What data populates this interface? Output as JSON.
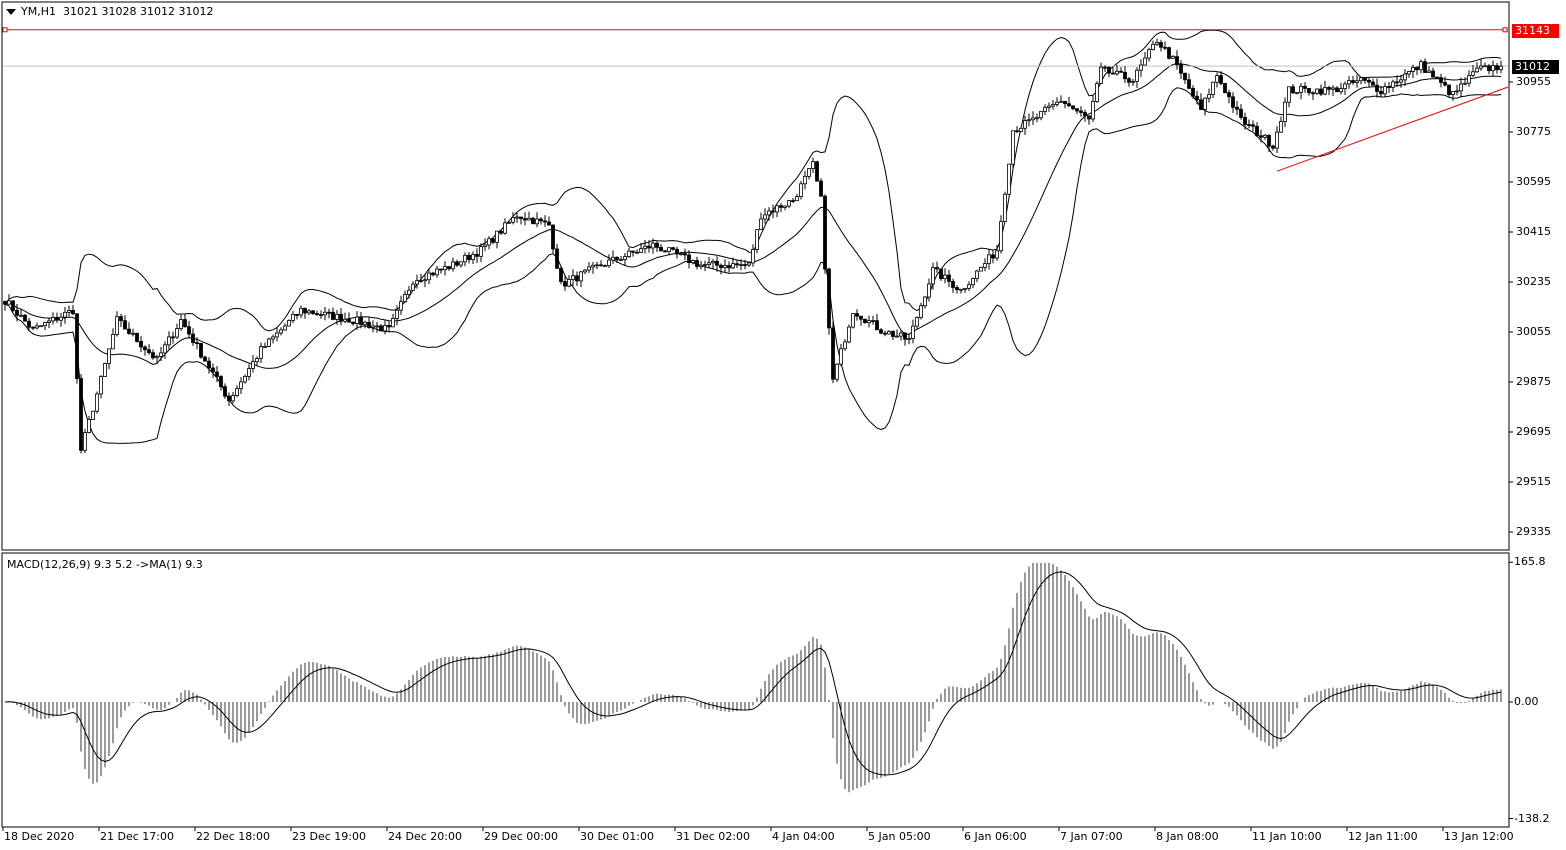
{
  "header": {
    "symbol": "YM,H1",
    "ohlc": "31021 31028 31012 31012"
  },
  "macd_label": "MACD(12,26,9) 9.3 5.2  ->MA(1) 9.3",
  "colors": {
    "bull_fill": "#ffffff",
    "bear_fill": "#000000",
    "line": "#000000",
    "resistance": "#ff0000",
    "trendline": "#ff0000",
    "current_price_bg": "#000000",
    "alert_bg": "#ff0000"
  },
  "price_tags": {
    "resistance": "31143",
    "current": "31012"
  },
  "chart_data": [
    {
      "type": "candlestick",
      "title": "YM,H1",
      "indicators": [
        "Bollinger Bands(20,2)"
      ],
      "ylim": [
        29290,
        31230
      ],
      "y_ticks": [
        "30955",
        "30775",
        "30595",
        "30415",
        "30235",
        "30055",
        "29875",
        "29695",
        "29515",
        "29335"
      ],
      "x_ticks": [
        "18 Dec 2020",
        "21 Dec 17:00",
        "22 Dec 18:00",
        "23 Dec 19:00",
        "24 Dec 20:00",
        "29 Dec 00:00",
        "30 Dec 01:00",
        "31 Dec 02:00",
        "4 Jan 04:00",
        "5 Jan 05:00",
        "6 Jan 06:00",
        "7 Jan 07:00",
        "8 Jan 08:00",
        "11 Jan 10:00",
        "12 Jan 11:00",
        "13 Jan 12:00"
      ],
      "bars_per_tick": 24,
      "close_anchors": [
        [
          0,
          30170
        ],
        [
          7,
          30062
        ],
        [
          17,
          30134
        ],
        [
          19,
          29630
        ],
        [
          24,
          29882
        ],
        [
          28,
          30098
        ],
        [
          38,
          29954
        ],
        [
          44,
          30098
        ],
        [
          56,
          29810
        ],
        [
          64,
          29990
        ],
        [
          74,
          30134
        ],
        [
          87,
          30098
        ],
        [
          96,
          30062
        ],
        [
          102,
          30242
        ],
        [
          112,
          30296
        ],
        [
          119,
          30350
        ],
        [
          128,
          30476
        ],
        [
          136,
          30440
        ],
        [
          139,
          30224
        ],
        [
          149,
          30296
        ],
        [
          162,
          30368
        ],
        [
          174,
          30296
        ],
        [
          186,
          30296
        ],
        [
          189,
          30476
        ],
        [
          197,
          30530
        ],
        [
          202,
          30656
        ],
        [
          204,
          30530
        ],
        [
          206,
          30062
        ],
        [
          207,
          29882
        ],
        [
          212,
          30134
        ],
        [
          219,
          30062
        ],
        [
          226,
          30026
        ],
        [
          232,
          30278
        ],
        [
          239,
          30206
        ],
        [
          248,
          30350
        ],
        [
          252,
          30782
        ],
        [
          257,
          30818
        ],
        [
          264,
          30890
        ],
        [
          271,
          30818
        ],
        [
          274,
          30998
        ],
        [
          282,
          30962
        ],
        [
          288,
          31106
        ],
        [
          292,
          31034
        ],
        [
          299,
          30854
        ],
        [
          303,
          30980
        ],
        [
          309,
          30818
        ],
        [
          317,
          30728
        ],
        [
          321,
          30926
        ],
        [
          332,
          30926
        ],
        [
          339,
          30962
        ],
        [
          344,
          30926
        ],
        [
          354,
          31016
        ],
        [
          362,
          30908
        ],
        [
          368,
          30998
        ],
        [
          374,
          31012
        ]
      ],
      "horizontal_lines": [
        {
          "price": 31143,
          "color": "#ff0000"
        },
        {
          "price": 31012,
          "color": "#c0c0c0"
        }
      ],
      "trendline": {
        "from": [
          318,
          30634
        ],
        "to": [
          376,
          30937
        ]
      }
    },
    {
      "type": "bar",
      "title": "MACD(12,26,9)",
      "values_label": "9.3 5.2",
      "ylim": [
        -138.2,
        165.8
      ],
      "y_ticks": [
        "165.8",
        "0.00",
        "-138.2"
      ]
    }
  ]
}
